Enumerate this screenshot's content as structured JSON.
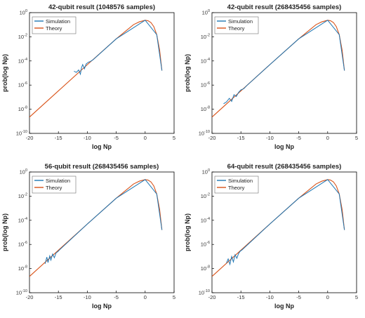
{
  "colors": {
    "simulation": "#1f77b4",
    "theory": "#d95319",
    "axis": "#000000"
  },
  "chart_data": [
    {
      "type": "line",
      "title": "42-qubit result (1048576 samples)",
      "xlabel": "log Np",
      "ylabel": "prob(log Np)",
      "xlim": [
        -20,
        5
      ],
      "ylim_exp": [
        -10,
        0
      ],
      "y_scale": "log",
      "x_ticks": [
        "-20",
        "-15",
        "-10",
        "-5",
        "0",
        "5"
      ],
      "y_tick_exps": [
        "-10",
        "-8",
        "-6",
        "-4",
        "-2",
        "0"
      ],
      "legend": {
        "position": "top-left",
        "entries": [
          "Simulation",
          "Theory"
        ]
      },
      "series": [
        {
          "name": "Theory",
          "x": [
            -20,
            -15,
            -10,
            -5,
            -2,
            -1,
            0,
            0.5,
            1,
            1.5,
            2,
            2.5,
            2.9
          ],
          "log10y": [
            -8.65,
            -6.48,
            -4.31,
            -2.17,
            -0.99,
            -0.76,
            -0.63,
            -0.67,
            -0.82,
            -1.16,
            -1.82,
            -3.1,
            -4.8
          ]
        },
        {
          "name": "Simulation",
          "x": [
            -12.3,
            -11.9,
            -11.5,
            -11.2,
            -11.0,
            -10.8,
            -10.5,
            -10.2,
            -9.8,
            -9.5,
            -9,
            -5,
            0,
            2,
            2.9
          ],
          "log10y": [
            -4.85,
            -4.95,
            -4.75,
            -5.1,
            -4.55,
            -4.3,
            -4.65,
            -4.25,
            -4.1,
            -4.05,
            -3.9,
            -2.17,
            -0.63,
            -1.82,
            -4.8
          ]
        }
      ]
    },
    {
      "type": "line",
      "title": "42-qubit result (268435456 samples)",
      "xlabel": "log Np",
      "ylabel": "prob(log Np)",
      "xlim": [
        -20,
        5
      ],
      "ylim_exp": [
        -10,
        0
      ],
      "y_scale": "log",
      "x_ticks": [
        "-20",
        "-15",
        "-10",
        "-5",
        "0",
        "5"
      ],
      "y_tick_exps": [
        "-10",
        "-8",
        "-6",
        "-4",
        "-2",
        "0"
      ],
      "legend": {
        "position": "top-left",
        "entries": [
          "Simulation",
          "Theory"
        ]
      },
      "series": [
        {
          "name": "Theory",
          "x": [
            -20,
            -15,
            -10,
            -5,
            -2,
            -1,
            0,
            0.5,
            1,
            1.5,
            2,
            2.5,
            2.9
          ],
          "log10y": [
            -8.65,
            -6.48,
            -4.31,
            -2.17,
            -0.99,
            -0.76,
            -0.63,
            -0.67,
            -0.82,
            -1.16,
            -1.82,
            -3.1,
            -4.8
          ]
        },
        {
          "name": "Simulation",
          "x": [
            -18,
            -17.5,
            -17,
            -16.6,
            -16.2,
            -15.8,
            -15.4,
            -15,
            -14.5,
            -14,
            -10,
            -5,
            0,
            2,
            2.9
          ],
          "log10y": [
            -7.55,
            -7.4,
            -7.1,
            -7.35,
            -6.8,
            -6.95,
            -6.6,
            -6.4,
            -6.3,
            -6.05,
            -4.31,
            -2.17,
            -0.63,
            -1.82,
            -4.8
          ]
        }
      ]
    },
    {
      "type": "line",
      "title": "56-qubit result (268435456 samples)",
      "xlabel": "log Np",
      "ylabel": "prob(log Np)",
      "xlim": [
        -20,
        5
      ],
      "ylim_exp": [
        -10,
        0
      ],
      "y_scale": "log",
      "x_ticks": [
        "-20",
        "-15",
        "-10",
        "-5",
        "0",
        "5"
      ],
      "y_tick_exps": [
        "-10",
        "-8",
        "-6",
        "-4",
        "-2",
        "0"
      ],
      "legend": {
        "position": "top-left",
        "entries": [
          "Simulation",
          "Theory"
        ]
      },
      "series": [
        {
          "name": "Theory",
          "x": [
            -20,
            -15,
            -10,
            -5,
            -2,
            -1,
            0,
            0.5,
            1,
            1.5,
            2,
            2.5,
            2.9
          ],
          "log10y": [
            -8.65,
            -6.48,
            -4.31,
            -2.17,
            -0.99,
            -0.76,
            -0.63,
            -0.67,
            -0.82,
            -1.16,
            -1.82,
            -3.1,
            -4.8
          ]
        },
        {
          "name": "Simulation",
          "x": [
            -17.3,
            -17,
            -16.8,
            -16.5,
            -16.3,
            -16,
            -15.7,
            -15.4,
            -15.1,
            -14.8,
            -10,
            -5,
            0,
            2,
            2.9
          ],
          "log10y": [
            -7.6,
            -7.05,
            -7.5,
            -6.95,
            -7.3,
            -6.8,
            -7.1,
            -6.7,
            -6.6,
            -6.45,
            -4.31,
            -2.17,
            -0.63,
            -1.82,
            -4.8
          ]
        }
      ]
    },
    {
      "type": "line",
      "title": "64-qubit result (268435456 samples)",
      "xlabel": "log Np",
      "ylabel": "prob(log Np)",
      "xlim": [
        -20,
        5
      ],
      "ylim_exp": [
        -10,
        0
      ],
      "y_scale": "log",
      "x_ticks": [
        "-20",
        "-15",
        "-10",
        "-5",
        "0",
        "5"
      ],
      "y_tick_exps": [
        "-10",
        "-8",
        "-6",
        "-4",
        "-2",
        "0"
      ],
      "legend": {
        "position": "top-left",
        "entries": [
          "Simulation",
          "Theory"
        ]
      },
      "series": [
        {
          "name": "Theory",
          "x": [
            -20,
            -15,
            -10,
            -5,
            -2,
            -1,
            0,
            0.5,
            1,
            1.5,
            2,
            2.5,
            2.9
          ],
          "log10y": [
            -8.65,
            -6.48,
            -4.31,
            -2.17,
            -0.99,
            -0.76,
            -0.63,
            -0.67,
            -0.82,
            -1.16,
            -1.82,
            -3.1,
            -4.8
          ]
        },
        {
          "name": "Simulation",
          "x": [
            -17.5,
            -17.2,
            -16.9,
            -16.6,
            -16.3,
            -16,
            -15.7,
            -15.4,
            -15.1,
            -14.8,
            -10,
            -5,
            0,
            2,
            2.9
          ],
          "log10y": [
            -7.55,
            -7.2,
            -7.65,
            -7.0,
            -7.45,
            -6.85,
            -7.15,
            -6.75,
            -6.55,
            -6.45,
            -4.31,
            -2.17,
            -0.63,
            -1.82,
            -4.8
          ]
        }
      ]
    }
  ]
}
